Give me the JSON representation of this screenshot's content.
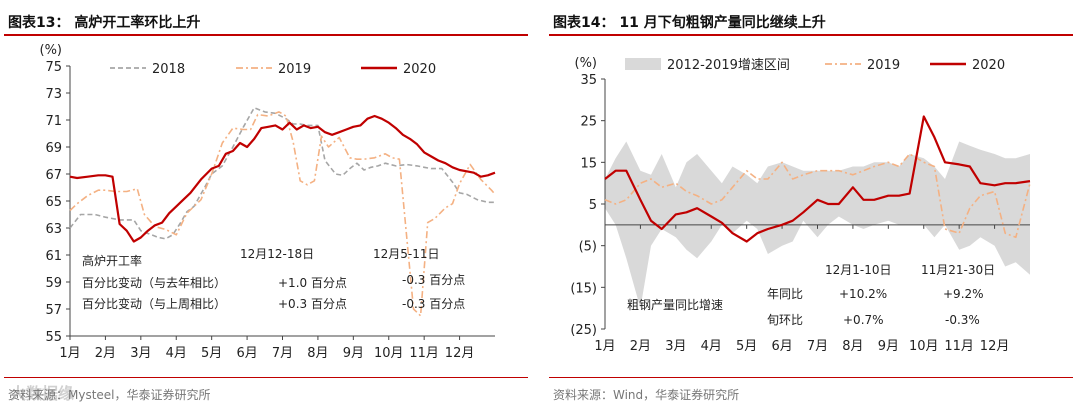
{
  "watermark": "大数据缘",
  "chart_data": [
    {
      "id": "chart13",
      "type": "line",
      "title": "图表13：  高炉开工率环比上升",
      "ylabel": "(%)",
      "ylim": [
        55,
        75
      ],
      "yticks": [
        55,
        57,
        59,
        61,
        63,
        65,
        67,
        69,
        71,
        73,
        75
      ],
      "xlim": [
        0,
        12
      ],
      "xticklabels": [
        "1月",
        "2月",
        "3月",
        "4月",
        "5月",
        "6月",
        "7月",
        "8月",
        "9月",
        "10月",
        "11月",
        "12月"
      ],
      "series": [
        {
          "name": "2018",
          "color": "#a6a6a6",
          "style": "dash",
          "x": [
            0,
            0.3,
            0.7,
            1.0,
            1.4,
            1.8,
            2.0,
            2.3,
            2.5,
            2.7,
            2.9,
            3.1,
            3.3,
            3.5,
            3.8,
            4.0,
            4.3,
            4.6,
            4.9,
            5.2,
            5.5,
            5.8,
            6.1,
            6.3,
            6.5,
            6.7,
            7.0,
            7.2,
            7.5,
            7.7,
            7.9,
            8.1,
            8.3,
            8.5,
            8.7,
            8.9,
            9.2,
            9.5,
            9.8,
            10.0,
            10.2,
            10.5,
            10.8,
            11.0,
            11.2,
            11.5,
            11.8,
            12.0
          ],
          "y": [
            63.0,
            64.0,
            64.0,
            63.8,
            63.6,
            63.6,
            62.8,
            62.5,
            62.3,
            62.2,
            62.5,
            63.3,
            64.2,
            64.6,
            66.0,
            67.0,
            67.6,
            69.0,
            70.5,
            71.9,
            71.6,
            71.5,
            71.1,
            70.7,
            70.7,
            70.6,
            70.6,
            68.0,
            67.0,
            66.9,
            67.4,
            67.8,
            67.3,
            67.5,
            67.6,
            67.8,
            67.6,
            67.7,
            67.6,
            67.5,
            67.4,
            67.4,
            66.4,
            65.6,
            65.5,
            65.1,
            64.9,
            64.9
          ]
        },
        {
          "name": "2019",
          "color": "#f4b183",
          "style": "dashdot",
          "x": [
            0,
            0.2,
            0.5,
            0.8,
            1.0,
            1.3,
            1.6,
            1.9,
            2.1,
            2.4,
            2.7,
            3.0,
            3.3,
            3.7,
            4.0,
            4.3,
            4.6,
            4.9,
            5.1,
            5.3,
            5.6,
            5.9,
            6.1,
            6.3,
            6.5,
            6.7,
            6.9,
            7.1,
            7.3,
            7.6,
            7.9,
            8.1,
            8.3,
            8.6,
            8.9,
            9.1,
            9.3,
            9.5,
            9.7,
            9.9,
            10.1,
            10.3,
            10.6,
            10.8,
            11.0,
            11.3,
            11.6,
            11.9,
            12.0
          ],
          "y": [
            64.3,
            64.8,
            65.4,
            65.8,
            65.8,
            65.7,
            65.7,
            65.9,
            64.0,
            63.1,
            62.9,
            62.5,
            64.1,
            65.1,
            67.0,
            69.3,
            70.4,
            70.3,
            70.3,
            71.4,
            71.3,
            71.6,
            71.3,
            69.4,
            66.5,
            66.2,
            66.5,
            69.8,
            69.0,
            69.7,
            68.2,
            68.1,
            68.1,
            68.2,
            68.5,
            68.2,
            68.1,
            62.5,
            57.0,
            56.5,
            63.4,
            63.7,
            64.5,
            64.8,
            66.3,
            67.7,
            66.6,
            65.8,
            65.5
          ]
        },
        {
          "name": "2020",
          "color": "#c00000",
          "style": "solid",
          "x": [
            0,
            0.2,
            0.5,
            0.8,
            1.0,
            1.2,
            1.4,
            1.6,
            1.8,
            2.0,
            2.2,
            2.4,
            2.6,
            2.8,
            3.0,
            3.2,
            3.4,
            3.7,
            4.0,
            4.2,
            4.4,
            4.6,
            4.8,
            5.0,
            5.2,
            5.4,
            5.6,
            5.8,
            6.0,
            6.2,
            6.4,
            6.6,
            6.8,
            7.0,
            7.2,
            7.4,
            7.6,
            7.8,
            8.0,
            8.2,
            8.4,
            8.6,
            8.8,
            9.0,
            9.2,
            9.4,
            9.6,
            9.8,
            10.0,
            10.2,
            10.4,
            10.6,
            10.8,
            11.0,
            11.2,
            11.4,
            11.6,
            11.8,
            12.0
          ],
          "y": [
            66.8,
            66.7,
            66.8,
            66.9,
            66.9,
            66.8,
            63.3,
            62.8,
            62.0,
            62.3,
            62.8,
            63.2,
            63.4,
            64.1,
            64.6,
            65.1,
            65.6,
            66.6,
            67.4,
            67.6,
            68.5,
            68.7,
            69.3,
            69.0,
            69.6,
            70.4,
            70.5,
            70.6,
            70.3,
            70.8,
            70.3,
            70.6,
            70.4,
            70.5,
            70.1,
            69.9,
            70.1,
            70.3,
            70.5,
            70.6,
            71.1,
            71.3,
            71.1,
            70.8,
            70.4,
            69.9,
            69.6,
            69.2,
            68.6,
            68.3,
            68.0,
            67.8,
            67.5,
            67.3,
            67.2,
            67.1,
            66.8,
            66.9,
            67.1
          ]
        }
      ],
      "annotations": {
        "line1": "高炉开工率",
        "col1_header": "12月12-18日",
        "col2_header": "12月5-11日",
        "row1_label": "百分比变动（与去年相比）",
        "row1_col1": "+1.0 百分点",
        "row1_col2": "-0.3 百分点",
        "row2_label": "百分比变动（与上周相比）",
        "row2_col1": "+0.3 百分点",
        "row2_col2": "-0.3 百分点"
      },
      "source": "资料来源：Mysteel，华泰证券研究所"
    },
    {
      "id": "chart14",
      "type": "line",
      "title": "图表14：  11 月下旬粗钢产量同比继续上升",
      "ylabel": "(%)",
      "ylim": [
        -25,
        35
      ],
      "yticks": [
        35,
        25,
        15,
        5,
        -5,
        -15,
        -25
      ],
      "yticklabels": [
        "35",
        "25",
        "15",
        "5",
        "(5)",
        "(15)",
        "(25)"
      ],
      "xlim": [
        0,
        12
      ],
      "xticklabels": [
        "1月",
        "2月",
        "3月",
        "4月",
        "5月",
        "6月",
        "7月",
        "8月",
        "9月",
        "10月",
        "11月",
        "12月"
      ],
      "band": {
        "name": "2012-2019增速区间",
        "color": "#d9d9d9",
        "x": [
          0,
          0.3,
          0.6,
          1.0,
          1.3,
          1.6,
          2.0,
          2.3,
          2.6,
          3.0,
          3.3,
          3.6,
          4.0,
          4.3,
          4.6,
          5.0,
          5.3,
          5.6,
          6.0,
          6.3,
          6.6,
          7.0,
          7.3,
          7.6,
          8.0,
          8.3,
          8.6,
          9.0,
          9.3,
          9.6,
          10.0,
          10.3,
          10.6,
          11.0,
          11.3,
          11.6,
          12.0
        ],
        "upper": [
          11,
          16,
          20,
          13,
          12,
          17,
          9,
          15,
          17,
          13,
          10,
          14,
          12,
          10,
          14,
          15,
          14,
          13,
          13,
          13,
          13,
          14,
          14,
          15,
          15,
          14,
          17,
          16,
          14,
          11,
          20,
          19,
          18,
          17,
          16,
          16,
          17
        ],
        "lower": [
          4,
          0,
          -8,
          -20,
          -5,
          -1,
          -3,
          -6,
          -8,
          -4,
          0,
          -2,
          1,
          -1,
          -7,
          -5,
          -4,
          1,
          -3,
          0,
          2,
          0,
          -1,
          0,
          1,
          0,
          0,
          0,
          -3,
          0,
          -6,
          -5,
          -3,
          -5,
          -10,
          -9,
          -12
        ]
      },
      "series": [
        {
          "name": "2019",
          "color": "#f4b183",
          "style": "dashdot",
          "x": [
            0,
            0.3,
            0.6,
            1.0,
            1.3,
            1.6,
            2.0,
            2.3,
            2.6,
            3.0,
            3.3,
            3.6,
            4.0,
            4.3,
            4.6,
            5.0,
            5.3,
            5.6,
            6.0,
            6.3,
            6.6,
            7.0,
            7.3,
            7.6,
            8.0,
            8.3,
            8.6,
            9.0,
            9.3,
            9.6,
            10.0,
            10.3,
            10.6,
            11.0,
            11.3,
            11.6,
            12.0
          ],
          "y": [
            6,
            5,
            6,
            10,
            11,
            9,
            10,
            8,
            7,
            5,
            6,
            9,
            13,
            11,
            11,
            15,
            11,
            12,
            13,
            13,
            13,
            12,
            13,
            14,
            15,
            14,
            17,
            15,
            14,
            -1,
            -2,
            4,
            7,
            8,
            -2,
            -3,
            10
          ]
        },
        {
          "name": "2020",
          "color": "#c00000",
          "style": "solid",
          "x": [
            0,
            0.3,
            0.6,
            1.0,
            1.3,
            1.6,
            2.0,
            2.3,
            2.6,
            3.0,
            3.3,
            3.6,
            4.0,
            4.3,
            4.6,
            5.0,
            5.3,
            5.6,
            6.0,
            6.3,
            6.6,
            7.0,
            7.3,
            7.6,
            8.0,
            8.3,
            8.6,
            9.0,
            9.3,
            9.6,
            10.0,
            10.3,
            10.6,
            11.0,
            11.3,
            11.6,
            12.0
          ],
          "y": [
            11,
            13,
            13,
            6,
            1,
            -1,
            2.5,
            3,
            4,
            2,
            0.5,
            -2,
            -4,
            -2,
            -1,
            0,
            1,
            3,
            6,
            5,
            5,
            9,
            6,
            6,
            7,
            7,
            7.5,
            26,
            21,
            15,
            14.5,
            14,
            10,
            9.5,
            10,
            10,
            10.5
          ]
        }
      ],
      "annotations": {
        "row_label_title": "粗钢产量同比增速",
        "col1_header": "12月1-10日",
        "col2_header": "11月21-30日",
        "row1_label": "年同比",
        "row1_col1": "+10.2%",
        "row1_col2": "+9.2%",
        "row2_label": "旬环比",
        "row2_col1": "+0.7%",
        "row2_col2": "-0.3%"
      },
      "source": "资料来源：Wind，华泰证券研究所"
    }
  ]
}
